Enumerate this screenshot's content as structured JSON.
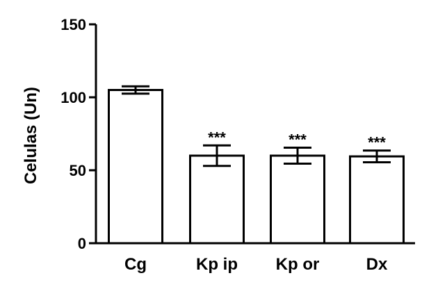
{
  "chart_data": {
    "type": "bar",
    "title": "",
    "xlabel": "",
    "ylabel": "Celulas (Un)",
    "ylim": [
      0,
      150
    ],
    "yticks": [
      0,
      50,
      100,
      150
    ],
    "categories": [
      "Cg",
      "Kp ip",
      "Kp or",
      "Dx"
    ],
    "values": [
      105,
      60,
      60,
      59.5
    ],
    "errors": [
      2.5,
      7,
      5.5,
      4
    ],
    "annotations": [
      "",
      "***",
      "***",
      "***"
    ],
    "grid": false,
    "bar_fill": "#ffffff",
    "bar_stroke": "#000000"
  }
}
